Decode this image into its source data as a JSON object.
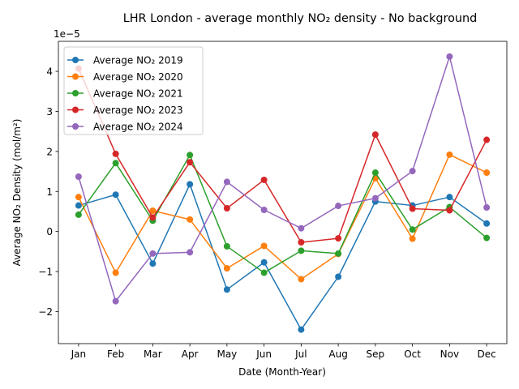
{
  "chart_data": {
    "type": "line",
    "title": "LHR London - average monthly NO₂ density - No background",
    "xlabel": "Date (Month-Year)",
    "ylabel": "Average NO₂ Density (mol/m²)",
    "offset_text": "1e−5",
    "categories": [
      "Jan",
      "Feb",
      "Mar",
      "Apr",
      "May",
      "Jun",
      "Jul",
      "Aug",
      "Sep",
      "Oct",
      "Nov",
      "Dec"
    ],
    "y_scale": 1e-05,
    "ylim": [
      -2.8,
      4.75
    ],
    "y_ticks": [
      -2,
      -1,
      0,
      1,
      2,
      3,
      4
    ],
    "y_tick_labels": [
      "−2",
      "−1",
      "0",
      "1",
      "2",
      "3",
      "4"
    ],
    "legend_position": "upper-left",
    "grid": false,
    "series": [
      {
        "name": "Average NO₂ 2019",
        "color": "#1f77b4",
        "values": [
          0.65,
          0.92,
          -0.8,
          1.18,
          -1.45,
          -0.77,
          -2.45,
          -1.13,
          0.75,
          0.65,
          0.86,
          0.2
        ]
      },
      {
        "name": "Average NO₂ 2020",
        "color": "#ff7f0e",
        "values": [
          0.86,
          -1.03,
          0.52,
          0.3,
          -0.92,
          -0.36,
          -1.19,
          -0.56,
          1.33,
          -0.18,
          1.92,
          1.47
        ]
      },
      {
        "name": "Average NO₂ 2021",
        "color": "#2ca02c",
        "values": [
          0.42,
          1.71,
          0.27,
          1.91,
          -0.37,
          -1.03,
          -0.48,
          -0.55,
          1.47,
          0.05,
          0.61,
          -0.16
        ]
      },
      {
        "name": "Average NO₂ 2023",
        "color": "#d62728",
        "values": [
          4.07,
          1.94,
          0.35,
          1.73,
          0.58,
          1.29,
          -0.27,
          -0.17,
          2.42,
          0.57,
          0.53,
          2.29
        ]
      },
      {
        "name": "Average NO₂ 2024",
        "color": "#9467bd",
        "values": [
          1.37,
          -1.74,
          -0.55,
          -0.52,
          1.24,
          0.54,
          0.08,
          0.64,
          0.83,
          1.51,
          4.37,
          0.6
        ]
      }
    ]
  }
}
